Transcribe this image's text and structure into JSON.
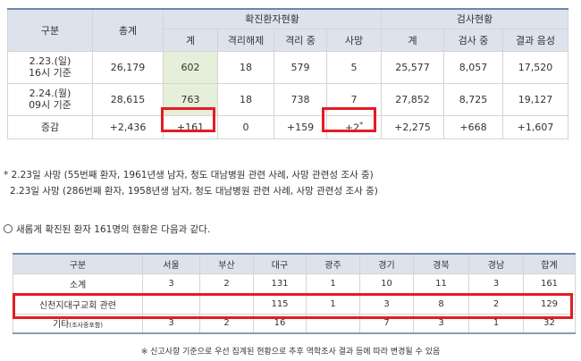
{
  "status_table": {
    "header": {
      "gubun": "구분",
      "total": "총계",
      "confirmed_group": "확진환자현황",
      "test_group": "검사현황",
      "confirmed_total": "계",
      "isolation_released": "격리해제",
      "in_isolation": "격리 중",
      "deaths": "사망",
      "test_total": "계",
      "testing": "검사 중",
      "negative": "결과 음성"
    },
    "rows": [
      {
        "label_line1": "2.23.(일)",
        "label_line2": "16시 기준",
        "total": "26,179",
        "confirmed": "602",
        "released": "18",
        "isolated": "579",
        "deaths": "5",
        "test_total": "25,577",
        "testing": "8,057",
        "negative": "17,520"
      },
      {
        "label_line1": "2.24.(월)",
        "label_line2": "09시 기준",
        "total": "28,615",
        "confirmed": "763",
        "released": "18",
        "isolated": "738",
        "deaths": "7",
        "test_total": "27,852",
        "testing": "8,725",
        "negative": "19,127"
      }
    ],
    "change": {
      "label": "증감",
      "total": "+2,436",
      "confirmed": "+161",
      "released": "0",
      "isolated": "+159",
      "deaths": "+2",
      "deaths_mark": "*",
      "test_total": "+2,275",
      "testing": "+668",
      "negative": "+1,607"
    }
  },
  "notes": {
    "line1": "* 2.23일 사망 (55번째 환자, 1961년생 남자, 청도 대남병원 관련 사례, 사망 관련성 조사 중)",
    "line2": "2.23일 사망 (286번째 환자, 1958년생 남자, 청도 대남병원 관련 사례, 사망 관련성 조사 중)",
    "intro": "새롭게 확진된 환자 161명의 현황은 다음과 같다."
  },
  "region_table": {
    "headers": [
      "구분",
      "서울",
      "부산",
      "대구",
      "광주",
      "경기",
      "경북",
      "경남",
      "합계"
    ],
    "rows": [
      {
        "label": "소계",
        "label_sub": "",
        "cells": [
          "3",
          "2",
          "131",
          "1",
          "10",
          "11",
          "3",
          "161"
        ]
      },
      {
        "label": "신천지대구교회 관련",
        "label_sub": "",
        "cells": [
          "",
          "",
          "115",
          "1",
          "3",
          "8",
          "2",
          "129"
        ]
      },
      {
        "label": "기타",
        "label_sub": "(조사중포함)",
        "cells": [
          "3",
          "2",
          "16",
          "",
          "7",
          "3",
          "1",
          "32"
        ]
      }
    ]
  },
  "footnote": "※ 신고사항 기준으로 우선 집계된 현황으로 추후 역학조사 결과 등에 따라 변경될 수 있음",
  "colors": {
    "header_bg": "#dde3ec",
    "header_rule": "#6e86ad",
    "highlight_green": "#e6efd9",
    "highlight_red": "#e41c23"
  }
}
